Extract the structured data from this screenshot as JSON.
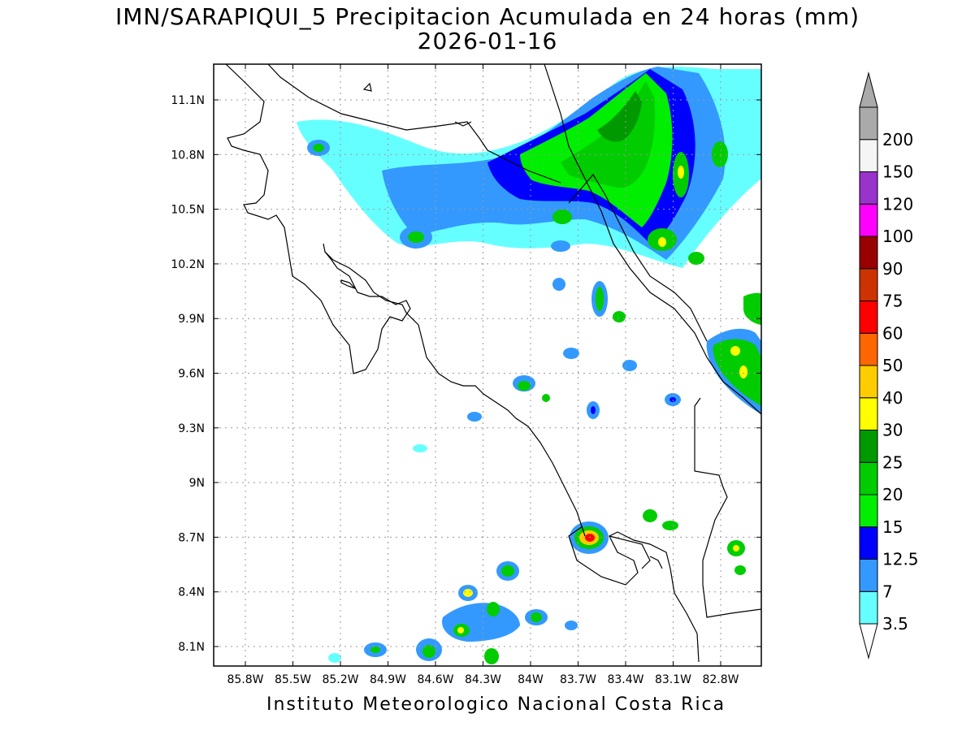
{
  "title": {
    "line1": "IMN/SARAPIQUI_5 Precipitacion Acumulada en 24 horas (mm)",
    "line2": "2026-01-16"
  },
  "footer": "Instituto Meteorologico Nacional Costa Rica",
  "map": {
    "lat_labels": [
      "11.1N",
      "10.8N",
      "10.5N",
      "10.2N",
      "9.9N",
      "9.6N",
      "9.3N",
      "9N",
      "8.7N",
      "8.4N",
      "8.1N"
    ],
    "lon_labels": [
      "85.8W",
      "85.5W",
      "85.2W",
      "84.9W",
      "84.6W",
      "84.3W",
      "84W",
      "83.7W",
      "83.4W",
      "83.1W",
      "82.8W"
    ],
    "grid": true
  },
  "colorbar": {
    "levels": [
      "3.5",
      "7",
      "12.5",
      "15",
      "20",
      "25",
      "30",
      "40",
      "50",
      "60",
      "75",
      "90",
      "100",
      "120",
      "150",
      "200"
    ],
    "colors": [
      "#66ffff",
      "#3399ff",
      "#0000ff",
      "#00ee00",
      "#00cc00",
      "#009900",
      "#ffff00",
      "#ffcc00",
      "#ff6600",
      "#ff0000",
      "#cc3300",
      "#990000",
      "#ff00ff",
      "#9933cc",
      "#f5f5f5",
      "#aaaaaa"
    ],
    "under_color": "#ffffff",
    "over_color": "#aaaaaa"
  }
}
